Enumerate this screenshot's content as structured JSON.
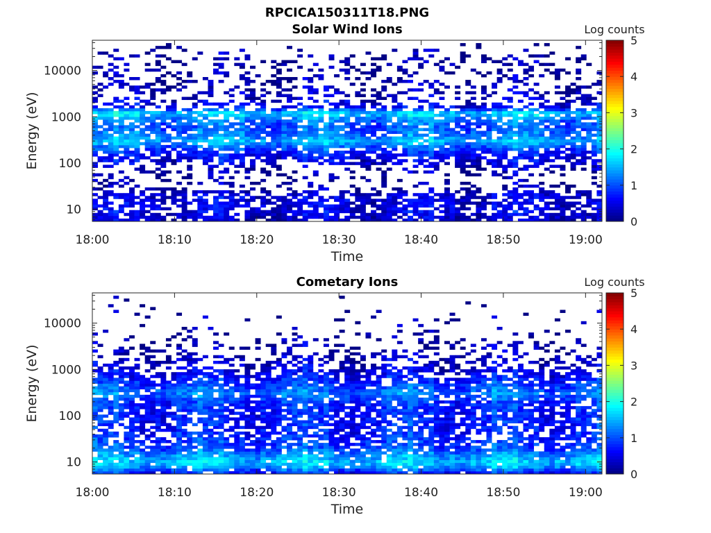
{
  "figure_title": "RPCICA150311T18.PNG",
  "chart_data": [
    {
      "type": "heatmap",
      "title": "Solar Wind Ions",
      "xlabel": "Time",
      "ylabel": "Energy (eV)",
      "x_ticks": [
        "18:00",
        "18:10",
        "18:20",
        "18:30",
        "18:40",
        "18:50",
        "19:00"
      ],
      "x_range": [
        "18:00",
        "19:02"
      ],
      "y_scale": "log",
      "y_ticks": [
        10,
        100,
        1000,
        10000
      ],
      "y_range": [
        5.5,
        45000
      ],
      "colorbar": {
        "label": "Log counts",
        "ticks": [
          0,
          1,
          2,
          3,
          4,
          5
        ],
        "range": [
          0,
          5
        ],
        "colormap": "jet"
      },
      "profile": {
        "energy": [
          5.5,
          10,
          20,
          30,
          60,
          100,
          150,
          200,
          300,
          400,
          600,
          900,
          1200,
          1600,
          2500,
          4000,
          7000,
          12000,
          20000,
          45000
        ],
        "log_counts": [
          0.3,
          0.5,
          0.4,
          0.1,
          0.1,
          0.4,
          0.6,
          0.9,
          1.5,
          1.2,
          1.0,
          1.2,
          1.7,
          0.6,
          0.3,
          0.2,
          0.1,
          0.1,
          0.1,
          0.0
        ],
        "occupancy": [
          0.85,
          0.7,
          0.7,
          0.2,
          0.25,
          0.5,
          0.8,
          0.85,
          0.9,
          0.85,
          0.8,
          0.75,
          0.9,
          0.5,
          0.35,
          0.3,
          0.25,
          0.25,
          0.2,
          0.0
        ]
      }
    },
    {
      "type": "heatmap",
      "title": "Cometary Ions",
      "xlabel": "Time",
      "ylabel": "Energy (eV)",
      "x_ticks": [
        "18:00",
        "18:10",
        "18:20",
        "18:30",
        "18:40",
        "18:50",
        "19:00"
      ],
      "x_range": [
        "18:00",
        "19:02"
      ],
      "y_scale": "log",
      "y_ticks": [
        10,
        100,
        1000,
        10000
      ],
      "y_range": [
        5.5,
        45000
      ],
      "colorbar": {
        "label": "Log counts",
        "ticks": [
          0,
          1,
          2,
          3,
          4,
          5
        ],
        "range": [
          0,
          5
        ],
        "colormap": "jet"
      },
      "profile": {
        "energy": [
          5.5,
          8,
          10,
          15,
          20,
          30,
          50,
          80,
          120,
          200,
          300,
          400,
          600,
          1000,
          1500,
          2500,
          4000,
          8000,
          45000
        ],
        "log_counts": [
          0.6,
          1.4,
          1.6,
          1.3,
          0.9,
          0.8,
          0.7,
          0.7,
          0.7,
          0.8,
          1.2,
          1.0,
          0.7,
          0.4,
          0.3,
          0.2,
          0.1,
          0.1,
          0.0
        ],
        "occupancy": [
          0.95,
          0.95,
          0.95,
          0.9,
          0.8,
          0.7,
          0.65,
          0.75,
          0.8,
          0.85,
          0.9,
          0.9,
          0.8,
          0.55,
          0.4,
          0.3,
          0.15,
          0.05,
          0.0
        ]
      }
    }
  ]
}
